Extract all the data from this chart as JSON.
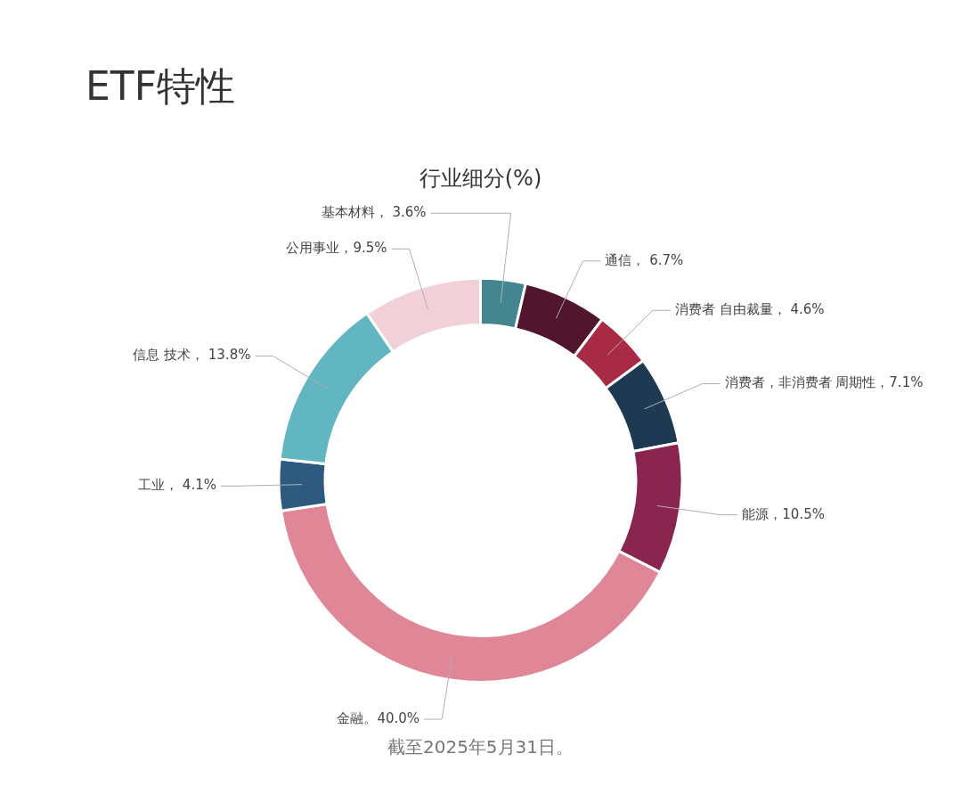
{
  "chart_data": {
    "type": "donut",
    "title": "ETF特性",
    "subtitle": "行业细分(%)",
    "categories": [
      "基本材料",
      "通信",
      "消费者 自由裁量",
      "消费者，非消费者 周期性",
      "能源",
      "金融",
      "工业",
      "信息 技术",
      "公用事业"
    ],
    "values": [
      3.6,
      6.7,
      4.6,
      7.1,
      10.5,
      40.0,
      4.1,
      13.8,
      9.5
    ],
    "colors": [
      "#43868f",
      "#52152e",
      "#a82a44",
      "#1e3a52",
      "#8a2550",
      "#e08797",
      "#2e5a80",
      "#62b6c2",
      "#f2d0d8"
    ],
    "value_labels": [
      "， 3.6%",
      "， 6.7%",
      "， 4.6%",
      "，7.1%",
      "，10.5%",
      "。40.0%",
      "， 4.1%",
      "， 13.8%",
      "，9.5%"
    ],
    "legend": false,
    "annotations": [
      "截至2025年5月31日。"
    ]
  }
}
